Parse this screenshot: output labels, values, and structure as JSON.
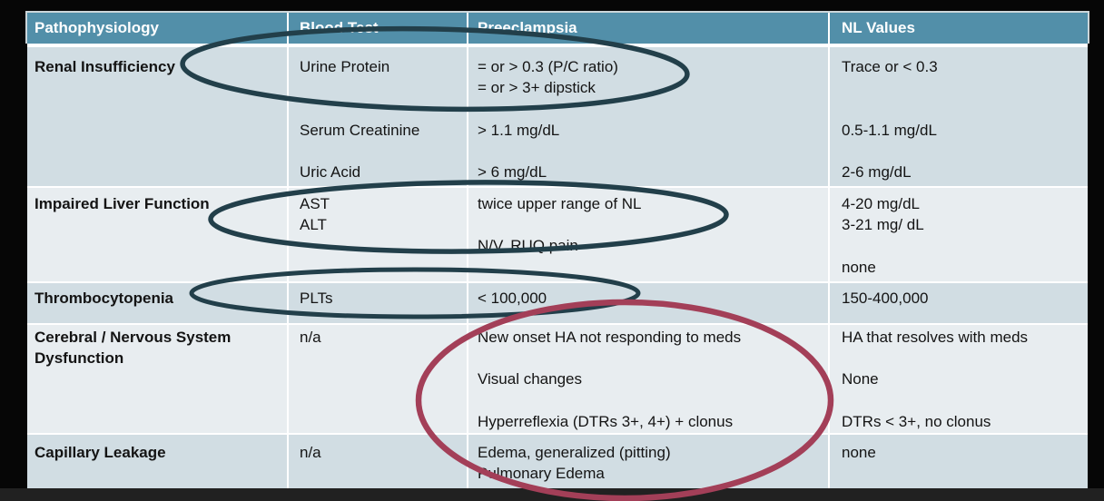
{
  "table": {
    "headers": [
      "Pathophysiology",
      "Blood Test",
      "Preeclampsia",
      "NL Values"
    ],
    "rows": [
      {
        "pathophysiology": [
          "Renal Insufficiency"
        ],
        "blood_test": [
          "Urine Protein",
          "",
          "",
          "Serum Creatinine",
          "",
          "Uric Acid"
        ],
        "preeclampsia": [
          "= or > 0.3 (P/C ratio)",
          "= or > 3+ dipstick",
          "",
          "> 1.1 mg/dL",
          "",
          "> 6 mg/dL"
        ],
        "nl_values": [
          "Trace or < 0.3",
          "",
          "",
          "0.5-1.1 mg/dL",
          "",
          "2-6 mg/dL"
        ]
      },
      {
        "pathophysiology": [
          "Impaired Liver Function"
        ],
        "blood_test": [
          "AST",
          "ALT"
        ],
        "preeclampsia": [
          "twice upper range of NL",
          "",
          "N/V, RUQ pain"
        ],
        "nl_values": [
          "4-20 mg/dL",
          "3-21 mg/ dL",
          "",
          "none"
        ]
      },
      {
        "pathophysiology": [
          "Thrombocytopenia"
        ],
        "blood_test": [
          "PLTs"
        ],
        "preeclampsia": [
          "< 100,000"
        ],
        "nl_values": [
          "150-400,000"
        ]
      },
      {
        "pathophysiology": [
          "Cerebral / Nervous System",
          "Dysfunction"
        ],
        "blood_test": [
          "n/a"
        ],
        "preeclampsia": [
          "New onset HA not responding to meds",
          "",
          "Visual changes",
          "",
          "Hyperreflexia (DTRs 3+, 4+) + clonus"
        ],
        "nl_values": [
          "HA that resolves with meds",
          "",
          "None",
          "",
          "DTRs < 3+, no clonus"
        ]
      },
      {
        "pathophysiology": [
          "Capillary Leakage"
        ],
        "blood_test": [
          "n/a"
        ],
        "preeclampsia": [
          "Edema, generalized (pitting)",
          "Pulmonary Edema"
        ],
        "nl_values": [
          "none"
        ]
      }
    ]
  },
  "colors": {
    "header_bg": "#528fa9",
    "header_text": "#ffffff",
    "row_dark": "#d1dde3",
    "row_light": "#e8edf0",
    "annotation_teal": "#223f4a",
    "annotation_red": "#a33f58",
    "background": "#060606"
  }
}
